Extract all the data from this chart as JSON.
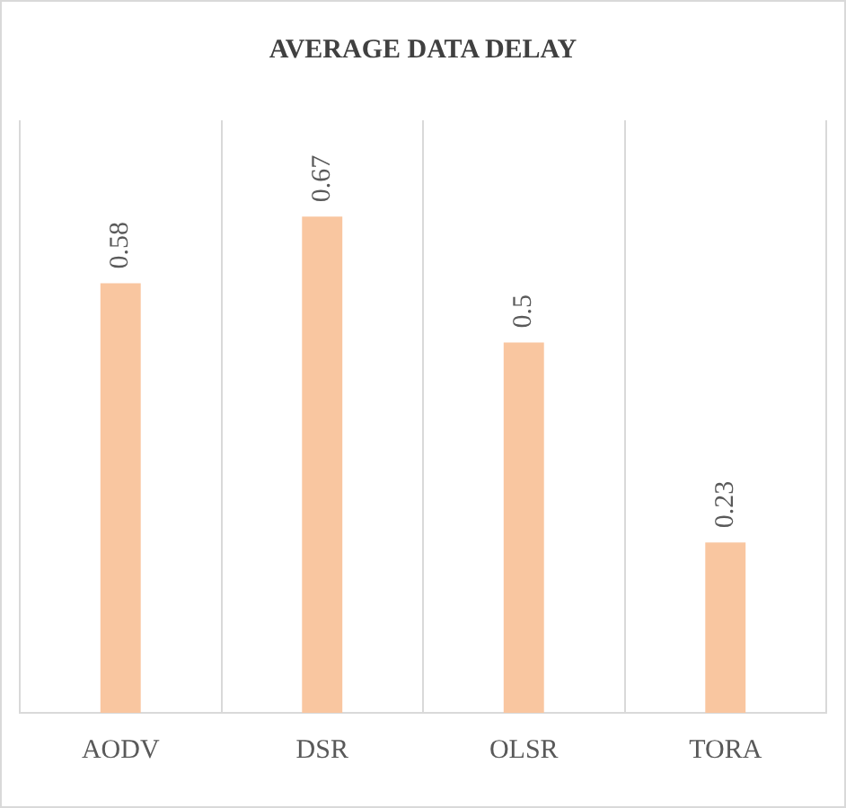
{
  "chart_data": {
    "type": "bar",
    "title": "AVERAGE DATA DELAY",
    "categories": [
      "AODV",
      "DSR",
      "OLSR",
      "TORA"
    ],
    "values": [
      0.58,
      0.67,
      0.5,
      0.23
    ],
    "color": "#f9c6a0",
    "data_labels": true,
    "grid": "x",
    "legend": false
  }
}
